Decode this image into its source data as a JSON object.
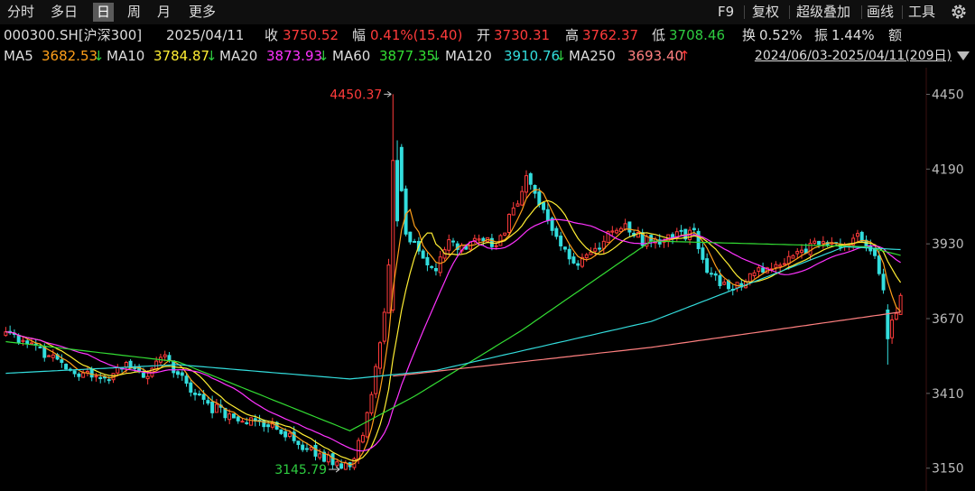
{
  "toolbar": {
    "periods": [
      "分时",
      "多日",
      "日",
      "周",
      "月",
      "更多"
    ],
    "active_period": "日",
    "tools": [
      "F9",
      "复权",
      "超级叠加",
      "画线",
      "工具"
    ],
    "settings_icon": "gear-icon"
  },
  "quote": {
    "code": "000300.SH[沪深300]",
    "date": "2025/04/11",
    "close_label": "收",
    "close": "3750.52",
    "change_label": "幅",
    "change": "0.41%(15.40)",
    "open_label": "开",
    "open": "3730.31",
    "high_label": "高",
    "high": "3762.37",
    "low_label": "低",
    "low": "3708.46",
    "turnover_label": "换",
    "turnover": "0.52%",
    "amplitude_label": "振",
    "amplitude": "1.44%",
    "amount_label": "额"
  },
  "ma_legend": [
    {
      "name": "MA5",
      "value": "3682.53",
      "arrow": "↓",
      "color": "#ff9f1a"
    },
    {
      "name": "MA10",
      "value": "3784.87",
      "arrow": "↓",
      "color": "#ffee33"
    },
    {
      "name": "MA20",
      "value": "3873.93",
      "arrow": "↓",
      "color": "#ff33ff"
    },
    {
      "name": "MA60",
      "value": "3877.35",
      "arrow": "↓",
      "color": "#33dd33"
    },
    {
      "name": "MA120",
      "value": "3910.76",
      "arrow": "↓",
      "color": "#33dddd"
    },
    {
      "name": "MA250",
      "value": "3693.40",
      "arrow": "↑",
      "color": "#ff8080"
    }
  ],
  "range_label": "2024/06/03-2025/04/11(209日)",
  "colors": {
    "up": "#ff3b3b",
    "down": "#33dddd",
    "label_up": "#ff3b3b",
    "label_down": "#2ecc40"
  },
  "chart_data": {
    "type": "candlestick",
    "bars": 209,
    "ylim": [
      3080,
      4530
    ],
    "y_ticks": [
      4450,
      4190,
      3930,
      3670,
      3410,
      3150
    ],
    "max_label": "4450.37",
    "min_label": "3145.79",
    "anchors": [
      [
        0,
        3610
      ],
      [
        8,
        3560
      ],
      [
        15,
        3500
      ],
      [
        22,
        3450
      ],
      [
        28,
        3500
      ],
      [
        33,
        3480
      ],
      [
        37,
        3530
      ],
      [
        42,
        3440
      ],
      [
        48,
        3360
      ],
      [
        55,
        3320
      ],
      [
        62,
        3290
      ],
      [
        68,
        3240
      ],
      [
        74,
        3190
      ],
      [
        78,
        3150
      ],
      [
        81,
        3180
      ],
      [
        84,
        3330
      ],
      [
        86,
        3500
      ],
      [
        88,
        3700
      ],
      [
        90,
        4000
      ],
      [
        91,
        4260
      ],
      [
        93,
        3980
      ],
      [
        96,
        3900
      ],
      [
        100,
        3830
      ],
      [
        103,
        3950
      ],
      [
        107,
        3900
      ],
      [
        110,
        3960
      ],
      [
        114,
        3920
      ],
      [
        118,
        4050
      ],
      [
        121,
        4150
      ],
      [
        124,
        4060
      ],
      [
        128,
        3960
      ],
      [
        132,
        3850
      ],
      [
        136,
        3900
      ],
      [
        140,
        3960
      ],
      [
        144,
        3990
      ],
      [
        148,
        3940
      ],
      [
        154,
        3950
      ],
      [
        160,
        3970
      ],
      [
        163,
        3840
      ],
      [
        167,
        3780
      ],
      [
        171,
        3790
      ],
      [
        175,
        3830
      ],
      [
        180,
        3850
      ],
      [
        185,
        3900
      ],
      [
        190,
        3950
      ],
      [
        194,
        3920
      ],
      [
        198,
        3950
      ],
      [
        202,
        3900
      ],
      [
        204,
        3760
      ],
      [
        205,
        3620
      ],
      [
        207,
        3690
      ],
      [
        208,
        3750
      ]
    ],
    "overrides": [
      {
        "i": 90,
        "open": 3700,
        "close": 4220,
        "high": 4450.37,
        "low": 3690
      },
      {
        "i": 91,
        "open": 4220,
        "close": 4010,
        "high": 4290,
        "low": 3990
      },
      {
        "i": 78,
        "open": 3165,
        "close": 3150,
        "high": 3180,
        "low": 3145.79
      },
      {
        "i": 205,
        "open": 3700,
        "close": 3600,
        "high": 3720,
        "low": 3510
      }
    ],
    "ma_lines": [
      {
        "name": "MA5",
        "window": 5,
        "color": "#ff9f1a"
      },
      {
        "name": "MA10",
        "window": 10,
        "color": "#ffee33"
      },
      {
        "name": "MA20",
        "window": 20,
        "color": "#ff33ff"
      },
      {
        "name": "MA60",
        "points": [
          [
            0,
            3590
          ],
          [
            40,
            3520
          ],
          [
            80,
            3280
          ],
          [
            95,
            3400
          ],
          [
            120,
            3630
          ],
          [
            150,
            3940
          ],
          [
            200,
            3920
          ],
          [
            208,
            3890
          ]
        ],
        "color": "#33dd33"
      },
      {
        "name": "MA120",
        "points": [
          [
            0,
            3480
          ],
          [
            40,
            3510
          ],
          [
            80,
            3460
          ],
          [
            100,
            3490
          ],
          [
            150,
            3660
          ],
          [
            195,
            3920
          ],
          [
            208,
            3910
          ]
        ],
        "color": "#33dddd"
      },
      {
        "name": "MA250",
        "points": [
          [
            90,
            3470
          ],
          [
            150,
            3570
          ],
          [
            208,
            3693
          ]
        ],
        "color": "#ff8080"
      }
    ]
  }
}
